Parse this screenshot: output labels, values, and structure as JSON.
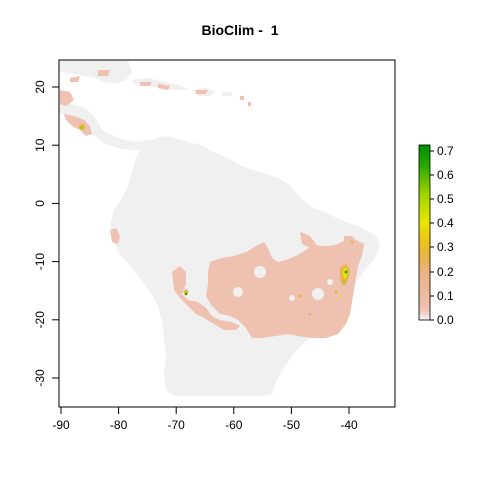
{
  "title": "BioClim -  1",
  "map": {
    "x_ticks": [
      "-90",
      "-80",
      "-70",
      "-60",
      "-50",
      "-40"
    ],
    "y_ticks": [
      "20",
      "10",
      "0",
      "-10",
      "-20",
      "-30"
    ],
    "background_color": "#f0f0f0",
    "suitability_low_color": "#efc1b0"
  },
  "legend": {
    "ticks": [
      "0.7",
      "0.6",
      "0.5",
      "0.4",
      "0.3",
      "0.2",
      "0.1",
      "0.0"
    ],
    "colors": [
      "#f2f2f2",
      "#efc2b2",
      "#ebb28c",
      "#e8b24a",
      "#eec21a",
      "#e8e600",
      "#9fd400",
      "#2aa800",
      "#008f00"
    ]
  }
}
